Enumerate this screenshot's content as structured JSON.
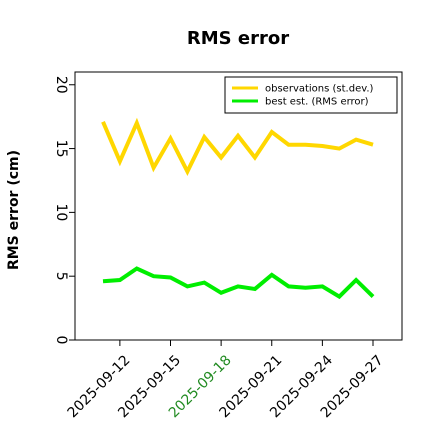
{
  "chart_data": {
    "type": "line",
    "title": "RMS error",
    "xlabel": "",
    "ylabel": "RMS error (cm)",
    "ylim": [
      0,
      21
    ],
    "yticks": [
      0,
      5,
      10,
      15,
      20
    ],
    "x": [
      "2025-09-11",
      "2025-09-12",
      "2025-09-13",
      "2025-09-14",
      "2025-09-15",
      "2025-09-16",
      "2025-09-17",
      "2025-09-18",
      "2025-09-19",
      "2025-09-20",
      "2025-09-21",
      "2025-09-22",
      "2025-09-23",
      "2025-09-24",
      "2025-09-25",
      "2025-09-26",
      "2025-09-27"
    ],
    "xtick_labels": [
      {
        "label": "2025-09-12",
        "index": 1,
        "highlight": false
      },
      {
        "label": "2025-09-15",
        "index": 4,
        "highlight": false
      },
      {
        "label": "2025-09-18",
        "index": 7,
        "highlight": true
      },
      {
        "label": "2025-09-21",
        "index": 10,
        "highlight": false
      },
      {
        "label": "2025-09-24",
        "index": 13,
        "highlight": false
      },
      {
        "label": "2025-09-27",
        "index": 16,
        "highlight": false
      }
    ],
    "series": [
      {
        "name": "observations (st.dev.)",
        "color": "#ffd700",
        "values": [
          17.1,
          14.0,
          17.0,
          13.5,
          15.8,
          13.2,
          15.9,
          14.3,
          16.0,
          14.3,
          16.3,
          15.3,
          15.3,
          15.2,
          15.0,
          15.7,
          15.3
        ]
      },
      {
        "name": "best est. (RMS error)",
        "color": "#00ee00",
        "values": [
          4.6,
          4.7,
          5.6,
          5.0,
          4.9,
          4.2,
          4.5,
          3.7,
          4.2,
          4.0,
          5.1,
          4.2,
          4.1,
          4.2,
          3.4,
          4.7,
          3.4
        ]
      }
    ],
    "legend": "top-right",
    "grid": false,
    "highlight_color": "#228b22"
  }
}
